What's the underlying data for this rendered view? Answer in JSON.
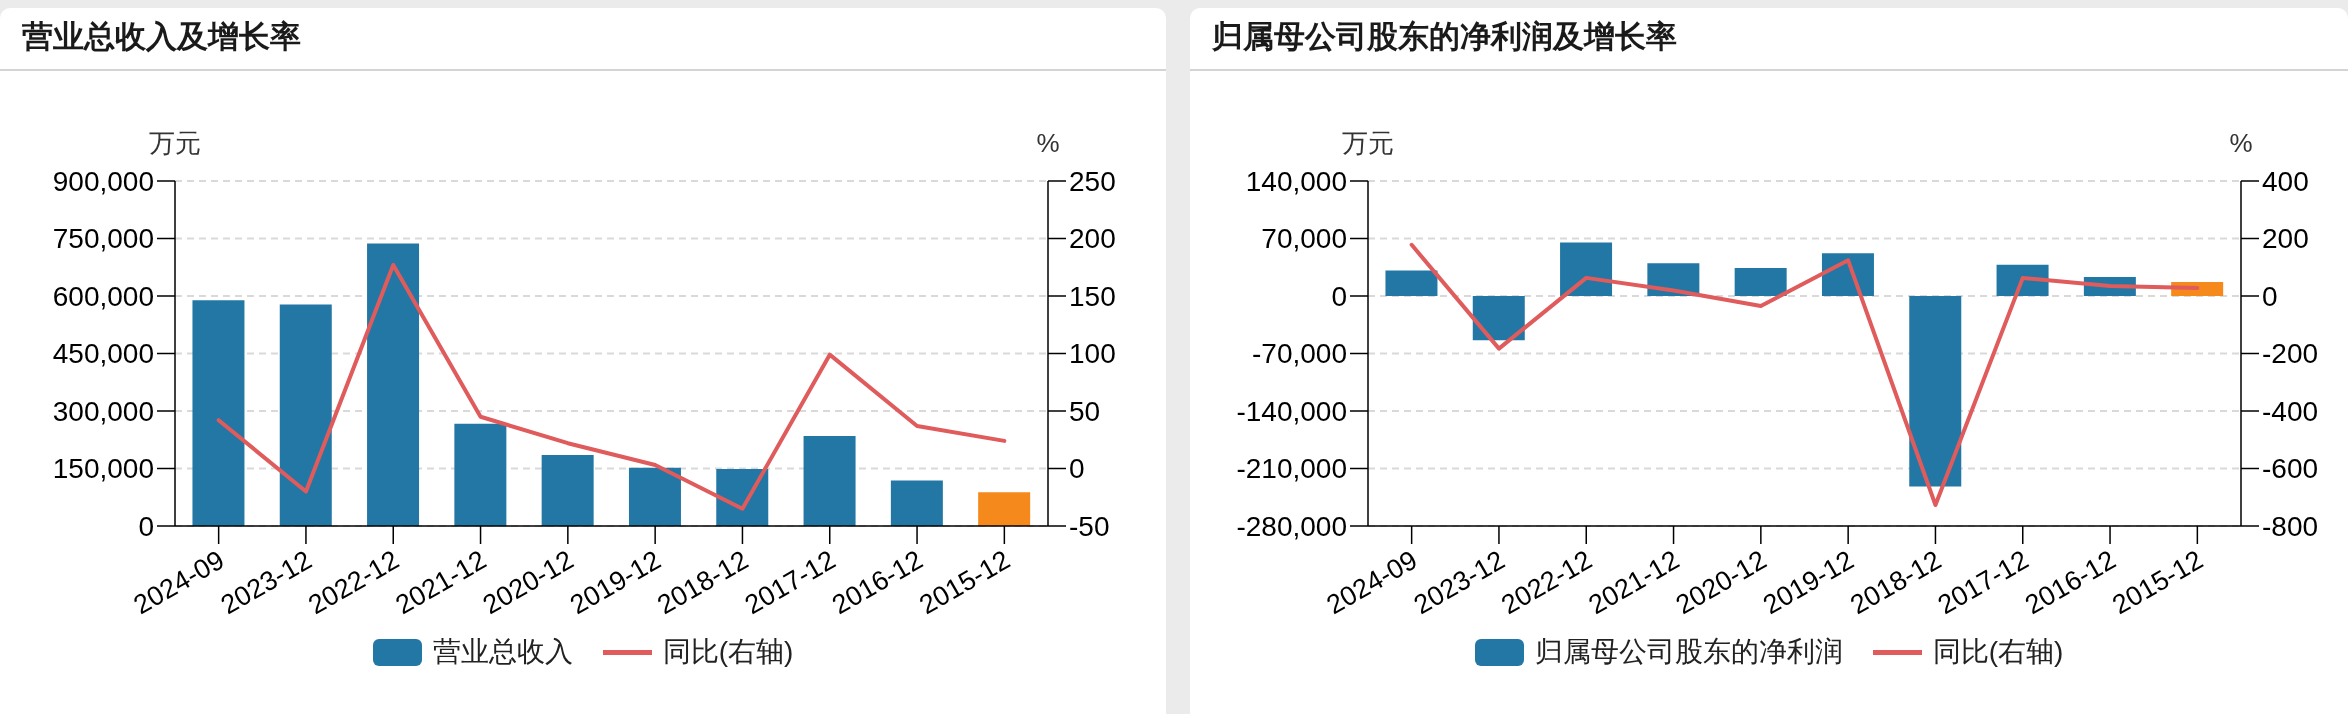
{
  "chart_data": [
    {
      "type": "bar",
      "title": "营业总收入及增长率",
      "ylabel": "万元",
      "y2label": "%",
      "categories": [
        "2024-09",
        "2023-12",
        "2022-12",
        "2021-12",
        "2020-12",
        "2019-12",
        "2018-12",
        "2017-12",
        "2016-12",
        "2015-12"
      ],
      "series": [
        {
          "name": "营业总收入",
          "color": "#2277a4",
          "colors": [
            "#2277a4",
            "#2277a4",
            "#2277a4",
            "#2277a4",
            "#2277a4",
            "#2277a4",
            "#2277a4",
            "#2277a4",
            "#2277a4",
            "#f5891c"
          ],
          "values": [
            589000,
            578000,
            737000,
            267000,
            185000,
            152000,
            149000,
            235000,
            119000,
            88000
          ]
        },
        {
          "name": "同比(右轴)",
          "type": "line",
          "axis": "y2",
          "color": "#e05b5b",
          "values": [
            42,
            -20,
            177,
            45,
            22,
            3,
            -35,
            99,
            37,
            24
          ]
        }
      ],
      "ylim": [
        0,
        900000
      ],
      "yticks": [
        0,
        {
          "value": 150000,
          "label": "150,000"
        },
        {
          "value": 300000,
          "label": "300,000"
        },
        {
          "value": 450000,
          "label": "450,000"
        },
        {
          "value": 600000,
          "label": "600,000"
        },
        {
          "value": 750000,
          "label": "750,000"
        },
        {
          "value": 900000,
          "label": "900,000"
        }
      ],
      "y2lim": [
        -50,
        250
      ],
      "y2ticks": [
        -50,
        0,
        50,
        100,
        150,
        200,
        250
      ],
      "grid": "y",
      "legend": "bottom"
    },
    {
      "type": "bar",
      "title": "归属母公司股东的净利润及增长率",
      "ylabel": "万元",
      "y2label": "%",
      "categories": [
        "2024-09",
        "2023-12",
        "2022-12",
        "2021-12",
        "2020-12",
        "2019-12",
        "2018-12",
        "2017-12",
        "2016-12",
        "2015-12"
      ],
      "series": [
        {
          "name": "归属母公司股东的净利润",
          "color": "#2277a4",
          "colors": [
            "#2277a4",
            "#2277a4",
            "#2277a4",
            "#2277a4",
            "#2277a4",
            "#2277a4",
            "#2277a4",
            "#2277a4",
            "#2277a4",
            "#f5891c"
          ],
          "values": [
            31000,
            -54000,
            65000,
            40000,
            34000,
            52000,
            -232000,
            38000,
            23000,
            17000
          ]
        },
        {
          "name": "同比(右轴)",
          "type": "line",
          "axis": "y2",
          "color": "#e05b5b",
          "values": [
            178,
            -183,
            63,
            19,
            -35,
            124,
            -727,
            63,
            35,
            28
          ]
        }
      ],
      "ylim": [
        -280000,
        140000
      ],
      "yticks": [
        {
          "value": -280000,
          "label": "-280,000"
        },
        {
          "value": -210000,
          "label": "-210,000"
        },
        {
          "value": -140000,
          "label": "-140,000"
        },
        {
          "value": -70000,
          "label": "-70,000"
        },
        0,
        {
          "value": 70000,
          "label": "70,000"
        },
        {
          "value": 140000,
          "label": "140,000"
        }
      ],
      "y2lim": [
        -800,
        400
      ],
      "y2ticks": [
        -800,
        -600,
        -400,
        -200,
        0,
        200,
        400
      ],
      "grid": "y",
      "legend": "bottom"
    }
  ]
}
